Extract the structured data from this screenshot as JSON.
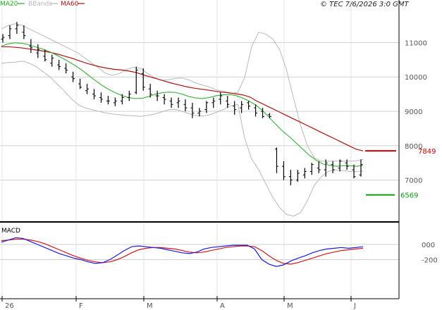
{
  "header": {
    "copyright": "© TEC 7/6/2026 3:0 GMT"
  },
  "legend": {
    "ma20": "MA20",
    "bbands": "BBands",
    "ma60": "MA60"
  },
  "macd_label": "MACD",
  "colors": {
    "price": "#000000",
    "ma20": "#22aa22",
    "ma60": "#aa1111",
    "bbands": "#b8b8b8",
    "macd": "#1a1ae0",
    "signal": "#d01818",
    "grid": "#cfcfcf",
    "support": "#119911",
    "resistance": "#cc0000"
  },
  "chart_data": [
    {
      "type": "line",
      "yaxis": {
        "ticks": [
          7000,
          8000,
          9000,
          10000,
          11000
        ],
        "labels": [
          "7000",
          "8000",
          "9000",
          "10000",
          "11000"
        ],
        "ylim": [
          6000,
          11900
        ]
      },
      "xaxis": {
        "labels": [
          "26",
          "F",
          "M",
          "A",
          "M",
          "J"
        ]
      },
      "series": [
        {
          "name": "MA20",
          "values": [
            10900,
            10960,
            10990,
            10980,
            10940,
            10880,
            10820,
            10750,
            10660,
            10560,
            10450,
            10330,
            10200,
            10050,
            9900,
            9760,
            9640,
            9540,
            9460,
            9400,
            9370,
            9380,
            9430,
            9500,
            9540,
            9560,
            9550,
            9500,
            9430,
            9390,
            9370,
            9400,
            9450,
            9480,
            9490,
            9460,
            9390,
            9300,
            9180,
            9020,
            8820,
            8620,
            8420,
            8260,
            8080,
            7900,
            7720,
            7580,
            7470,
            7430,
            7400,
            7420,
            7420,
            7400,
            7430
          ]
        },
        {
          "name": "MA60",
          "values": [
            10880,
            10880,
            10860,
            10840,
            10810,
            10780,
            10750,
            10710,
            10660,
            10600,
            10540,
            10470,
            10400,
            10340,
            10290,
            10250,
            10220,
            10200,
            10170,
            10130,
            10060,
            10000,
            9940,
            9880,
            9820,
            9770,
            9720,
            9680,
            9650,
            9620,
            9590,
            9560,
            9540,
            9510,
            9480,
            9420,
            9300,
            9200,
            9100,
            9000,
            8900,
            8800,
            8700,
            8600,
            8500,
            8400,
            8300,
            8200,
            8100,
            8000,
            7900,
            7849
          ]
        },
        {
          "name": "BBands",
          "upper": [
            11400,
            11500,
            11550,
            11500,
            11400,
            11300,
            11200,
            11100,
            11000,
            10900,
            10800,
            10700,
            10550,
            10400,
            10260,
            10100,
            10050,
            10100,
            10220,
            10280,
            10250,
            10100,
            9980,
            9900,
            9920,
            9960,
            9970,
            9910,
            9820,
            9760,
            9700,
            9620,
            9580,
            9520,
            9550,
            10000,
            10900,
            11300,
            11250,
            11100,
            10800,
            10200,
            9400,
            8600,
            8000,
            7650,
            7550,
            7550,
            7550,
            7550,
            7550,
            7560,
            7600
          ],
          "lower": [
            10400,
            10420,
            10430,
            10460,
            10400,
            10300,
            10150,
            10000,
            9800,
            9600,
            9380,
            9200,
            9100,
            9050,
            9000,
            8950,
            8920,
            8900,
            8880,
            8870,
            8850,
            8880,
            8920,
            8980,
            9040,
            9060,
            9000,
            8930,
            8880,
            8860,
            8900,
            8980,
            9060,
            9160,
            9200,
            8200,
            7600,
            7300,
            6900,
            6500,
            6200,
            6000,
            5950,
            6050,
            6400,
            6850,
            7100,
            7250,
            7300,
            7280,
            7250,
            7250,
            7260
          ]
        }
      ],
      "price_ohlc": [
        [
          11100,
          11250,
          11000,
          11150
        ],
        [
          11200,
          11500,
          11100,
          11400
        ],
        [
          11400,
          11600,
          11250,
          11500
        ],
        [
          11300,
          11500,
          11100,
          11200
        ],
        [
          10900,
          11100,
          10700,
          10850
        ],
        [
          10700,
          10950,
          10550,
          10800
        ],
        [
          10600,
          10800,
          10450,
          10500
        ],
        [
          10400,
          10650,
          10300,
          10550
        ],
        [
          10350,
          10500,
          10200,
          10300
        ],
        [
          10250,
          10400,
          10100,
          10200
        ],
        [
          10000,
          10150,
          9850,
          9950
        ],
        [
          9800,
          9950,
          9650,
          9700
        ],
        [
          9600,
          9800,
          9500,
          9650
        ],
        [
          9500,
          9650,
          9350,
          9450
        ],
        [
          9400,
          9550,
          9250,
          9350
        ],
        [
          9300,
          9450,
          9200,
          9300
        ],
        [
          9250,
          9400,
          9150,
          9300
        ],
        [
          9300,
          9500,
          9200,
          9400
        ],
        [
          9400,
          9600,
          9300,
          9500
        ],
        [
          9550,
          10300,
          9500,
          10200
        ],
        [
          10100,
          10250,
          9600,
          9700
        ],
        [
          9650,
          9800,
          9400,
          9500
        ],
        [
          9450,
          9600,
          9300,
          9450
        ],
        [
          9400,
          9500,
          9200,
          9350
        ],
        [
          9300,
          9400,
          9100,
          9200
        ],
        [
          9250,
          9400,
          9100,
          9300
        ],
        [
          9200,
          9350,
          9000,
          9100
        ],
        [
          9100,
          9250,
          8800,
          8950
        ],
        [
          8950,
          9100,
          8850,
          9000
        ],
        [
          9050,
          9300,
          8950,
          9250
        ],
        [
          9250,
          9400,
          9100,
          9300
        ],
        [
          9350,
          9550,
          9200,
          9450
        ],
        [
          9300,
          9450,
          9100,
          9200
        ],
        [
          9150,
          9300,
          8900,
          9050
        ],
        [
          9100,
          9300,
          8950,
          9200
        ],
        [
          9250,
          9300,
          9050,
          9150
        ],
        [
          9100,
          9200,
          8850,
          8950
        ],
        [
          9000,
          9100,
          8800,
          8850
        ],
        [
          8900,
          8950,
          8800,
          8850
        ],
        [
          7900,
          7950,
          7200,
          7400
        ],
        [
          7400,
          7550,
          7000,
          7100
        ],
        [
          7100,
          7300,
          6850,
          7000
        ],
        [
          7000,
          7300,
          6950,
          7200
        ],
        [
          7150,
          7350,
          7050,
          7250
        ],
        [
          7250,
          7500,
          7150,
          7450
        ],
        [
          7350,
          7550,
          7200,
          7300
        ],
        [
          7300,
          7600,
          7100,
          7500
        ],
        [
          7450,
          7550,
          7200,
          7300
        ],
        [
          7350,
          7600,
          7250,
          7550
        ],
        [
          7500,
          7600,
          7300,
          7400
        ],
        [
          7300,
          7450,
          7050,
          7100
        ],
        [
          7150,
          7600,
          7100,
          7450
        ]
      ],
      "levels": [
        {
          "name": "resistance",
          "value": 7849,
          "label": "7849"
        },
        {
          "name": "support",
          "value": 6569,
          "label": "6569"
        }
      ]
    },
    {
      "type": "line",
      "title": "MACD",
      "yaxis": {
        "ticks": [
          0,
          -200
        ],
        "labels": [
          "000",
          "-200"
        ],
        "ylim": [
          -300,
          120
        ]
      },
      "series": [
        {
          "name": "MACD",
          "values": [
            30,
            60,
            90,
            80,
            40,
            0,
            -40,
            -80,
            -120,
            -150,
            -180,
            -200,
            -230,
            -250,
            -240,
            -200,
            -140,
            -80,
            -30,
            -20,
            -30,
            -40,
            -50,
            -70,
            -90,
            -110,
            -120,
            -100,
            -60,
            -40,
            -30,
            -20,
            -10,
            -10,
            -10,
            -60,
            -200,
            -260,
            -290,
            -270,
            -220,
            -180,
            -150,
            -110,
            -80,
            -60,
            -50,
            -40,
            -50,
            -40,
            -30
          ]
        },
        {
          "name": "Signal",
          "values": [
            50,
            60,
            70,
            70,
            60,
            40,
            10,
            -30,
            -70,
            -110,
            -150,
            -180,
            -210,
            -230,
            -240,
            -230,
            -200,
            -160,
            -110,
            -70,
            -50,
            -40,
            -40,
            -50,
            -60,
            -80,
            -100,
            -110,
            -100,
            -80,
            -60,
            -40,
            -30,
            -20,
            -20,
            -30,
            -80,
            -150,
            -210,
            -250,
            -260,
            -240,
            -210,
            -180,
            -150,
            -120,
            -100,
            -80,
            -70,
            -60,
            -50
          ]
        }
      ]
    }
  ]
}
